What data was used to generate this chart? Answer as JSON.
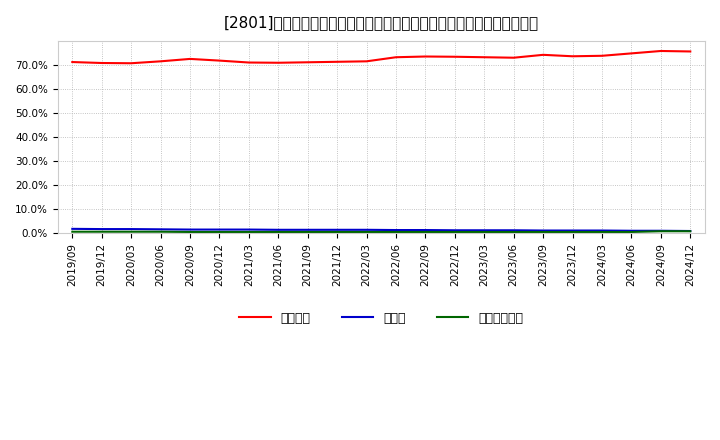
{
  "title": "[2801]　自己資本、のれん、繰延税金資産の総資産に対する比率の推移",
  "x_labels": [
    "2019/09",
    "2019/12",
    "2020/03",
    "2020/06",
    "2020/09",
    "2020/12",
    "2021/03",
    "2021/06",
    "2021/09",
    "2021/12",
    "2022/03",
    "2022/06",
    "2022/09",
    "2022/12",
    "2023/03",
    "2023/06",
    "2023/09",
    "2023/12",
    "2024/03",
    "2024/06",
    "2024/09",
    "2024/12"
  ],
  "equity_ratio": [
    71.2,
    70.8,
    70.7,
    71.5,
    72.5,
    71.8,
    71.0,
    70.9,
    71.1,
    71.3,
    71.5,
    73.2,
    73.5,
    73.4,
    73.2,
    73.0,
    74.2,
    73.6,
    73.8,
    74.8,
    75.8,
    75.6
  ],
  "goodwill_ratio": [
    1.8,
    1.7,
    1.7,
    1.6,
    1.5,
    1.5,
    1.5,
    1.4,
    1.4,
    1.4,
    1.4,
    1.3,
    1.3,
    1.2,
    1.2,
    1.2,
    1.1,
    1.1,
    1.1,
    1.0,
    1.0,
    0.9
  ],
  "deferred_tax_ratio": [
    0.6,
    0.6,
    0.6,
    0.6,
    0.5,
    0.5,
    0.5,
    0.5,
    0.5,
    0.5,
    0.5,
    0.5,
    0.5,
    0.5,
    0.5,
    0.5,
    0.5,
    0.5,
    0.5,
    0.5,
    0.8,
    0.8
  ],
  "equity_color": "#ff0000",
  "goodwill_color": "#0000cc",
  "deferred_tax_color": "#006600",
  "legend_labels": [
    "自己資本",
    "のれん",
    "繰延税金資産"
  ],
  "ylim": [
    0,
    80
  ],
  "yticks": [
    0.0,
    10.0,
    20.0,
    30.0,
    40.0,
    50.0,
    60.0,
    70.0
  ],
  "background_color": "#ffffff",
  "plot_bg_color": "#ffffff",
  "grid_color": "#aaaaaa",
  "title_fontsize": 11,
  "tick_fontsize": 7.5,
  "legend_fontsize": 9
}
